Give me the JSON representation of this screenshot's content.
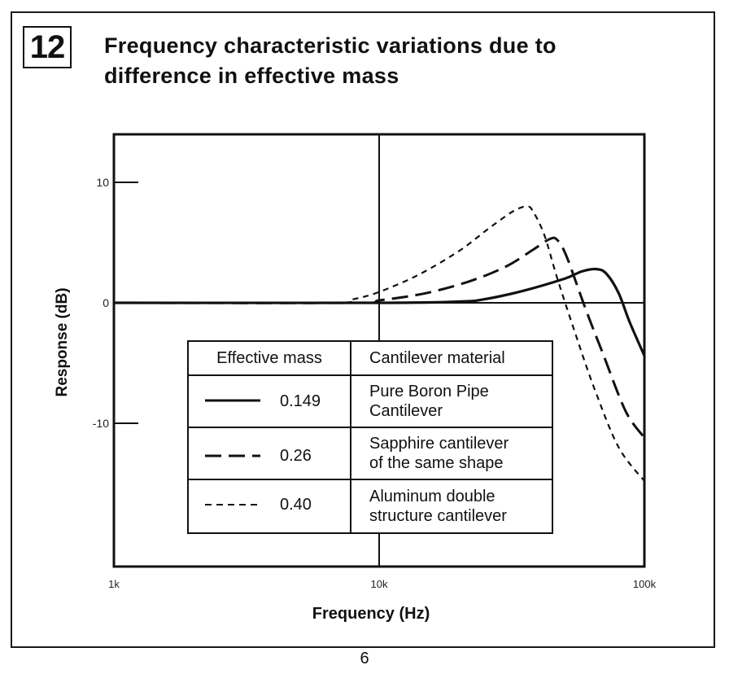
{
  "figure": {
    "number": "12",
    "title_line1": "Frequency characteristic variations due to",
    "title_line2": "difference in effective mass",
    "page_number": "6"
  },
  "chart_data": {
    "type": "line",
    "title": "Frequency characteristic variations due to difference in effective mass",
    "xlabel": "Frequency (Hz)",
    "ylabel": "Response (dB)",
    "xscale": "log",
    "xlim": [
      1000,
      100000
    ],
    "ylim": [
      -22,
      14
    ],
    "x_ticks": [
      {
        "value": 1000,
        "label": "1k"
      },
      {
        "value": 10000,
        "label": "10k"
      },
      {
        "value": 100000,
        "label": "100k"
      }
    ],
    "y_ticks": [
      {
        "value": 10,
        "label": "10"
      },
      {
        "value": 0,
        "label": "0"
      },
      {
        "value": -10,
        "label": "-10"
      }
    ],
    "reference_lines": {
      "x": 10000,
      "y": 0
    },
    "series": [
      {
        "name": "Pure Boron Pipe Cantilever",
        "effective_mass": "0.149",
        "dash": "solid",
        "points": [
          [
            1000,
            0
          ],
          [
            10000,
            0
          ],
          [
            20000,
            0.1
          ],
          [
            25000,
            0.3
          ],
          [
            35000,
            1.0
          ],
          [
            50000,
            2.0
          ],
          [
            58000,
            2.6
          ],
          [
            66000,
            2.8
          ],
          [
            72000,
            2.4
          ],
          [
            80000,
            0.8
          ],
          [
            88000,
            -1.6
          ],
          [
            100000,
            -4.4
          ]
        ]
      },
      {
        "name": "Sapphire cantilever of the same shape",
        "effective_mass": "0.26",
        "dash": "long-dash",
        "points": [
          [
            1000,
            0
          ],
          [
            8000,
            0
          ],
          [
            10000,
            0.2
          ],
          [
            15000,
            0.8
          ],
          [
            22000,
            1.8
          ],
          [
            30000,
            3.0
          ],
          [
            38000,
            4.4
          ],
          [
            44000,
            5.3
          ],
          [
            47000,
            5.2
          ],
          [
            51000,
            3.8
          ],
          [
            60000,
            -0.5
          ],
          [
            70000,
            -4.3
          ],
          [
            85000,
            -9.0
          ],
          [
            100000,
            -11.2
          ]
        ]
      },
      {
        "name": "Aluminum double structure cantilever",
        "effective_mass": "0.40",
        "dash": "short-dash",
        "points": [
          [
            1000,
            0
          ],
          [
            6500,
            0
          ],
          [
            8000,
            0.3
          ],
          [
            10000,
            0.9
          ],
          [
            14000,
            2.3
          ],
          [
            20000,
            4.3
          ],
          [
            26000,
            6.2
          ],
          [
            32000,
            7.6
          ],
          [
            36000,
            8.0
          ],
          [
            38000,
            7.6
          ],
          [
            42000,
            5.6
          ],
          [
            47000,
            2.0
          ],
          [
            55000,
            -2.6
          ],
          [
            65000,
            -7.2
          ],
          [
            80000,
            -12.0
          ],
          [
            100000,
            -14.8
          ]
        ]
      }
    ],
    "legend": {
      "placement": "lower-center",
      "headers": [
        "Effective mass",
        "Cantilever material"
      ],
      "rows": [
        {
          "mass": "0.149",
          "material_line1": "Pure Boron Pipe",
          "material_line2": "Cantilever"
        },
        {
          "mass": "0.26",
          "material_line1": "Sapphire cantilever",
          "material_line2": "of the same shape"
        },
        {
          "mass": "0.40",
          "material_line1": "Aluminum double",
          "material_line2": "structure cantilever"
        }
      ]
    }
  }
}
